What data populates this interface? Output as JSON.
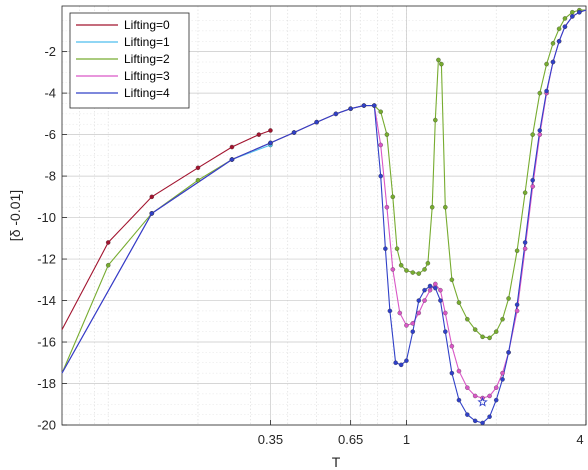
{
  "chart_data": {
    "type": "line",
    "title": "",
    "xlabel": "T",
    "ylabel": "[δ -0.01]",
    "x_scale": "log",
    "xlim": [
      0.07,
      4
    ],
    "ylim": [
      -20,
      0.2
    ],
    "x_ticks": [
      0.35,
      0.65,
      1,
      4
    ],
    "x_tick_labels": [
      "0.35",
      "0.65",
      "1",
      "4"
    ],
    "y_ticks": [
      -20,
      -18,
      -16,
      -14,
      -12,
      -10,
      -8,
      -6,
      -4,
      -2
    ],
    "y_tick_labels": [
      "-20",
      "-18",
      "-16",
      "-14",
      "-12",
      "-10",
      "-8",
      "-6",
      "-4",
      "-2"
    ],
    "grid": true,
    "legend_position": "top-left",
    "series": [
      {
        "name": "Lifting=0",
        "color": "#a2142f",
        "x": [
          0.07,
          0.1,
          0.14,
          0.2,
          0.26,
          0.32,
          0.35
        ],
        "y": [
          -15.4,
          -11.2,
          -9.0,
          -7.6,
          -6.6,
          -6.0,
          -5.8
        ]
      },
      {
        "name": "Lifting=1",
        "color": "#4dbeee",
        "x": [
          0.07,
          0.14,
          0.26,
          0.35
        ],
        "y": [
          -17.5,
          -9.8,
          -7.2,
          -6.5
        ]
      },
      {
        "name": "Lifting=2",
        "color": "#77ac30",
        "x": [
          0.07,
          0.1,
          0.14,
          0.2,
          0.26,
          0.35,
          0.42,
          0.5,
          0.58,
          0.65,
          0.72,
          0.78,
          0.82,
          0.86,
          0.9,
          0.93,
          0.96,
          1.0,
          1.05,
          1.1,
          1.15,
          1.18,
          1.22,
          1.25,
          1.28,
          1.31,
          1.35,
          1.42,
          1.5,
          1.6,
          1.7,
          1.8,
          1.9,
          2.0,
          2.1,
          2.2,
          2.35,
          2.5,
          2.65,
          2.8,
          2.95,
          3.1,
          3.25,
          3.4,
          3.6,
          3.8,
          4.0
        ],
        "y": [
          -17.5,
          -12.3,
          -9.8,
          -8.2,
          -7.2,
          -6.4,
          -5.9,
          -5.4,
          -5.0,
          -4.75,
          -4.6,
          -4.6,
          -4.9,
          -6.0,
          -9.0,
          -11.5,
          -12.3,
          -12.55,
          -12.65,
          -12.7,
          -12.5,
          -12.2,
          -9.5,
          -5.3,
          -2.4,
          -2.6,
          -9.5,
          -13.0,
          -14.1,
          -14.9,
          -15.4,
          -15.75,
          -15.8,
          -15.5,
          -14.9,
          -13.9,
          -11.6,
          -8.8,
          -6.0,
          -4.0,
          -2.6,
          -1.6,
          -0.9,
          -0.4,
          -0.1,
          0.0,
          0.0
        ]
      },
      {
        "name": "Lifting=3",
        "color": "#d957c6",
        "x": [
          0.07,
          0.14,
          0.26,
          0.35,
          0.42,
          0.5,
          0.58,
          0.65,
          0.72,
          0.78,
          0.82,
          0.86,
          0.9,
          0.95,
          1.0,
          1.05,
          1.1,
          1.15,
          1.2,
          1.25,
          1.3,
          1.35,
          1.42,
          1.5,
          1.6,
          1.7,
          1.8,
          1.9,
          2.0,
          2.1,
          2.2,
          2.35,
          2.5,
          2.65,
          2.8,
          2.95,
          3.1,
          3.25,
          3.4,
          3.6,
          3.8,
          4.0
        ],
        "y": [
          -17.5,
          -9.8,
          -7.2,
          -6.4,
          -5.9,
          -5.4,
          -5.0,
          -4.75,
          -4.6,
          -4.6,
          -6.5,
          -9.5,
          -12.5,
          -14.6,
          -15.2,
          -15.1,
          -14.6,
          -14.0,
          -13.5,
          -13.2,
          -13.5,
          -14.6,
          -16.2,
          -17.4,
          -18.2,
          -18.6,
          -18.7,
          -18.6,
          -18.2,
          -17.5,
          -16.5,
          -14.5,
          -11.5,
          -8.5,
          -6.0,
          -4.0,
          -2.5,
          -1.5,
          -0.8,
          -0.3,
          -0.1,
          0.0
        ]
      },
      {
        "name": "Lifting=4",
        "color": "#3040c8",
        "x": [
          0.07,
          0.14,
          0.26,
          0.35,
          0.42,
          0.5,
          0.58,
          0.65,
          0.72,
          0.78,
          0.82,
          0.85,
          0.88,
          0.92,
          0.96,
          1.0,
          1.05,
          1.1,
          1.15,
          1.2,
          1.25,
          1.3,
          1.35,
          1.42,
          1.5,
          1.6,
          1.7,
          1.8,
          1.9,
          2.0,
          2.1,
          2.2,
          2.35,
          2.5,
          2.65,
          2.8,
          2.95,
          3.1,
          3.25,
          3.4,
          3.6,
          3.8,
          4.0
        ],
        "y": [
          -17.5,
          -9.8,
          -7.2,
          -6.4,
          -5.9,
          -5.4,
          -5.0,
          -4.75,
          -4.6,
          -4.6,
          -8.0,
          -11.5,
          -14.5,
          -17.0,
          -17.1,
          -16.9,
          -15.5,
          -14.0,
          -13.5,
          -13.3,
          -13.4,
          -14.0,
          -15.5,
          -17.5,
          -18.8,
          -19.5,
          -19.8,
          -19.9,
          -19.6,
          -18.8,
          -17.8,
          -16.5,
          -14.2,
          -11.2,
          -8.2,
          -5.8,
          -3.9,
          -2.5,
          -1.5,
          -0.8,
          -0.3,
          -0.1,
          0.0
        ]
      }
    ],
    "annotations": [
      {
        "type": "star-marker",
        "x": 1.8,
        "y": -18.9,
        "color": "#3040c8"
      }
    ]
  }
}
